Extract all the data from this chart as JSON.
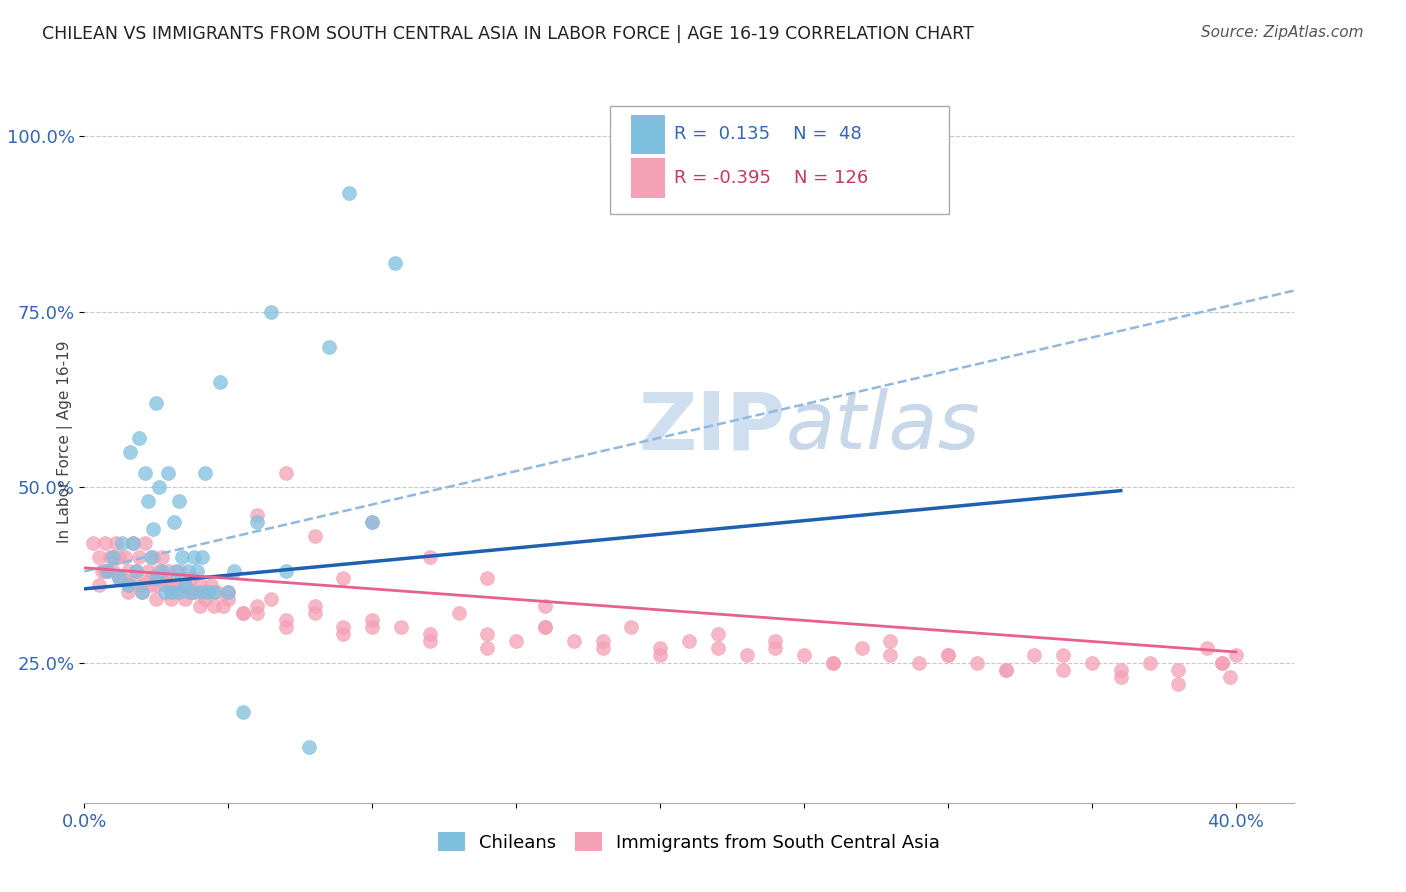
{
  "title": "CHILEAN VS IMMIGRANTS FROM SOUTH CENTRAL ASIA IN LABOR FORCE | AGE 16-19 CORRELATION CHART",
  "source": "Source: ZipAtlas.com",
  "ylabel": "In Labor Force | Age 16-19",
  "xlim": [
    0.0,
    0.42
  ],
  "ylim": [
    0.05,
    1.08
  ],
  "xtick_positions": [
    0.0,
    0.05,
    0.1,
    0.15,
    0.2,
    0.25,
    0.3,
    0.35,
    0.4
  ],
  "xticklabels": [
    "0.0%",
    "",
    "",
    "",
    "",
    "",
    "",
    "",
    "40.0%"
  ],
  "ytick_positions": [
    0.25,
    0.5,
    0.75,
    1.0
  ],
  "ytick_labels": [
    "25.0%",
    "50.0%",
    "75.0%",
    "100.0%"
  ],
  "blue_R": 0.135,
  "blue_N": 48,
  "pink_R": -0.395,
  "pink_N": 126,
  "legend_label_blue": "Chileans",
  "legend_label_pink": "Immigrants from South Central Asia",
  "blue_scatter_color": "#7fbfdf",
  "pink_scatter_color": "#f4a0b5",
  "blue_line_color": "#2060b0",
  "dashed_line_color": "#90b8e0",
  "pink_line_color": "#e86090",
  "watermark_color": "#d0dff0",
  "background_color": "#ffffff",
  "grid_color": "#c8c8c8",
  "blue_x": [
    0.008,
    0.01,
    0.012,
    0.013,
    0.015,
    0.016,
    0.017,
    0.018,
    0.019,
    0.02,
    0.021,
    0.022,
    0.023,
    0.024,
    0.025,
    0.025,
    0.026,
    0.027,
    0.028,
    0.029,
    0.03,
    0.031,
    0.032,
    0.033,
    0.033,
    0.034,
    0.035,
    0.036,
    0.037,
    0.038,
    0.039,
    0.04,
    0.041,
    0.042,
    0.043,
    0.045,
    0.047,
    0.05,
    0.052,
    0.055,
    0.06,
    0.065,
    0.07,
    0.078,
    0.085,
    0.092,
    0.1,
    0.108
  ],
  "blue_y": [
    0.38,
    0.4,
    0.37,
    0.42,
    0.36,
    0.55,
    0.42,
    0.38,
    0.57,
    0.35,
    0.52,
    0.48,
    0.4,
    0.44,
    0.37,
    0.62,
    0.5,
    0.38,
    0.35,
    0.52,
    0.35,
    0.45,
    0.38,
    0.35,
    0.48,
    0.4,
    0.36,
    0.38,
    0.35,
    0.4,
    0.38,
    0.35,
    0.4,
    0.52,
    0.35,
    0.35,
    0.65,
    0.35,
    0.38,
    0.18,
    0.45,
    0.75,
    0.38,
    0.13,
    0.7,
    0.92,
    0.45,
    0.82
  ],
  "pink_x": [
    0.003,
    0.005,
    0.006,
    0.007,
    0.008,
    0.009,
    0.01,
    0.011,
    0.012,
    0.013,
    0.014,
    0.015,
    0.016,
    0.017,
    0.018,
    0.019,
    0.02,
    0.021,
    0.022,
    0.023,
    0.024,
    0.025,
    0.026,
    0.027,
    0.028,
    0.029,
    0.03,
    0.032,
    0.033,
    0.035,
    0.036,
    0.037,
    0.038,
    0.04,
    0.042,
    0.044,
    0.046,
    0.048,
    0.05,
    0.055,
    0.06,
    0.065,
    0.07,
    0.08,
    0.09,
    0.1,
    0.11,
    0.12,
    0.13,
    0.14,
    0.15,
    0.16,
    0.17,
    0.18,
    0.19,
    0.2,
    0.21,
    0.22,
    0.23,
    0.24,
    0.25,
    0.26,
    0.27,
    0.28,
    0.29,
    0.3,
    0.31,
    0.32,
    0.33,
    0.34,
    0.35,
    0.36,
    0.37,
    0.38,
    0.39,
    0.395,
    0.398,
    0.4,
    0.005,
    0.007,
    0.01,
    0.012,
    0.015,
    0.018,
    0.02,
    0.023,
    0.025,
    0.028,
    0.03,
    0.033,
    0.035,
    0.038,
    0.04,
    0.042,
    0.045,
    0.05,
    0.055,
    0.06,
    0.07,
    0.08,
    0.09,
    0.1,
    0.12,
    0.14,
    0.16,
    0.18,
    0.2,
    0.22,
    0.24,
    0.26,
    0.28,
    0.3,
    0.32,
    0.34,
    0.36,
    0.38,
    0.395,
    0.06,
    0.07,
    0.08,
    0.09,
    0.1,
    0.12,
    0.14,
    0.16
  ],
  "pink_y": [
    0.42,
    0.4,
    0.38,
    0.42,
    0.38,
    0.4,
    0.38,
    0.42,
    0.4,
    0.37,
    0.4,
    0.38,
    0.36,
    0.42,
    0.38,
    0.4,
    0.36,
    0.42,
    0.38,
    0.36,
    0.4,
    0.36,
    0.38,
    0.4,
    0.36,
    0.38,
    0.36,
    0.35,
    0.38,
    0.36,
    0.35,
    0.37,
    0.35,
    0.36,
    0.34,
    0.36,
    0.35,
    0.33,
    0.35,
    0.32,
    0.32,
    0.34,
    0.3,
    0.33,
    0.3,
    0.3,
    0.3,
    0.28,
    0.32,
    0.29,
    0.28,
    0.3,
    0.28,
    0.27,
    0.3,
    0.27,
    0.28,
    0.27,
    0.26,
    0.28,
    0.26,
    0.25,
    0.27,
    0.26,
    0.25,
    0.26,
    0.25,
    0.24,
    0.26,
    0.24,
    0.25,
    0.23,
    0.25,
    0.24,
    0.27,
    0.25,
    0.23,
    0.26,
    0.36,
    0.38,
    0.4,
    0.37,
    0.35,
    0.37,
    0.35,
    0.37,
    0.34,
    0.37,
    0.34,
    0.36,
    0.34,
    0.35,
    0.33,
    0.35,
    0.33,
    0.34,
    0.32,
    0.33,
    0.31,
    0.32,
    0.29,
    0.31,
    0.29,
    0.27,
    0.3,
    0.28,
    0.26,
    0.29,
    0.27,
    0.25,
    0.28,
    0.26,
    0.24,
    0.26,
    0.24,
    0.22,
    0.25,
    0.46,
    0.52,
    0.43,
    0.37,
    0.45,
    0.4,
    0.37,
    0.33
  ],
  "blue_trend_x0": 0.0,
  "blue_trend_x1": 0.36,
  "blue_trend_y0": 0.355,
  "blue_trend_y1": 0.495,
  "dashed_trend_x0": 0.0,
  "dashed_trend_x1": 0.42,
  "dashed_trend_y0": 0.38,
  "dashed_trend_y1": 0.78,
  "pink_trend_x0": 0.0,
  "pink_trend_x1": 0.4,
  "pink_trend_y0": 0.385,
  "pink_trend_y1": 0.265
}
